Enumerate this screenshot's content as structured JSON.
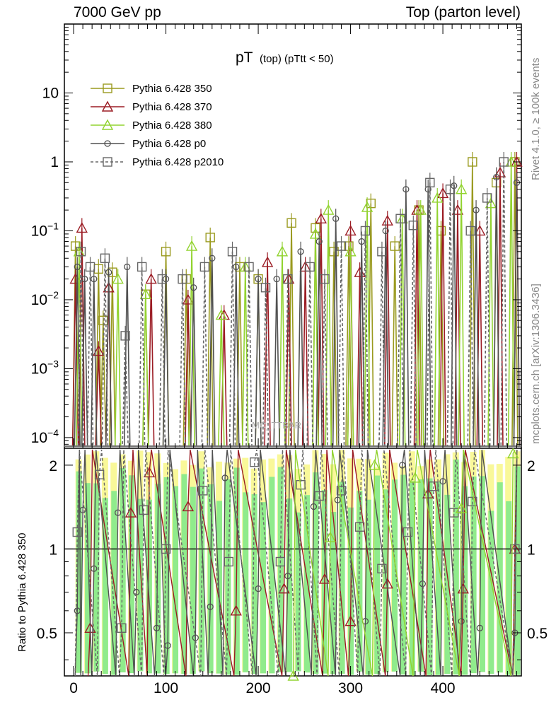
{
  "header": {
    "left": "7000 GeV pp",
    "right": "Top (parton level)"
  },
  "side_labels": {
    "rivet": "Rivet 4.1.0, ≥ 100k events",
    "mcplots": "mcplots.cern.ch [arXiv:1306.3436]"
  },
  "chart_data": {
    "type": "line",
    "title_main": "pT",
    "title_sub": "(top)  (pTtt < 50)",
    "watermark": "MC_TTBAR",
    "xlabel": "",
    "ylabel_ratio": "Ratio to Pythia 6.428 350",
    "xlim": [
      -10,
      485
    ],
    "ylim_main": [
      7e-05,
      100
    ],
    "ylim_ratio": [
      0.35,
      2.3
    ],
    "x_ticks": [
      "0",
      "100",
      "200",
      "300",
      "400"
    ],
    "y_ticks_main": [
      {
        "v": 10,
        "base": "10",
        "exp": ""
      },
      {
        "v": 1,
        "base": "1",
        "exp": ""
      },
      {
        "v": 0.1,
        "base": "10",
        "exp": "−1"
      },
      {
        "v": 0.01,
        "base": "10",
        "exp": "−2"
      },
      {
        "v": 0.001,
        "base": "10",
        "exp": "−3"
      },
      {
        "v": 0.0001,
        "base": "10",
        "exp": "−4"
      }
    ],
    "y_ticks_ratio": [
      "2",
      "1",
      "0.5"
    ],
    "y_ticks_ratio_vals": [
      2,
      1,
      0.5
    ],
    "legend": [
      {
        "name": "Pythia 6.428 350",
        "color": "#9a9a1f",
        "marker": "square-open",
        "dashed": false
      },
      {
        "name": "Pythia 6.428 370",
        "color": "#9b1c24",
        "marker": "triangle-open",
        "dashed": false
      },
      {
        "name": "Pythia 6.428 380",
        "color": "#92d330",
        "marker": "triangle-open",
        "dashed": false
      },
      {
        "name": "Pythia 6.428 p0",
        "color": "#505050",
        "marker": "circle-open",
        "dashed": false
      },
      {
        "name": "Pythia 6.428 p2010",
        "color": "#666666",
        "marker": "square-open",
        "dashed": true
      }
    ],
    "series": [
      {
        "name": "Pythia 6.428 350",
        "x": [
          2,
          27,
          32,
          42,
          78,
          100,
          122,
          148,
          180,
          200,
          236,
          262,
          282,
          298,
          322,
          348,
          374,
          398,
          432,
          458,
          478
        ],
        "y": [
          0.06,
          0.028,
          0.005,
          0.025,
          0.012,
          0.05,
          0.02,
          0.08,
          0.03,
          0.02,
          0.13,
          0.11,
          0.05,
          0.06,
          0.25,
          0.06,
          0.2,
          0.1,
          1.0,
          0.5,
          1.0
        ]
      },
      {
        "name": "Pythia 6.428 370",
        "x": [
          2,
          9,
          27,
          38,
          84,
          124,
          163,
          210,
          233,
          251,
          268,
          300,
          310,
          340,
          372,
          400,
          416,
          440,
          462,
          480
        ],
        "y": [
          0.02,
          0.11,
          0.0018,
          0.015,
          0.02,
          0.01,
          0.006,
          0.035,
          0.02,
          0.03,
          0.15,
          0.1,
          0.025,
          0.14,
          0.2,
          0.35,
          0.2,
          0.1,
          0.7,
          1.0
        ]
      },
      {
        "name": "Pythia 6.428 380",
        "x": [
          6,
          48,
          78,
          128,
          160,
          186,
          226,
          262,
          276,
          300,
          318,
          356,
          376,
          394,
          420,
          452,
          474
        ],
        "y": [
          0.05,
          0.02,
          0.012,
          0.06,
          0.006,
          0.03,
          0.05,
          0.09,
          0.2,
          0.05,
          0.22,
          0.15,
          0.2,
          0.3,
          0.4,
          0.25,
          1.0
        ]
      },
      {
        "name": "Pythia 6.428 p0",
        "x": [
          4,
          12,
          22,
          38,
          58,
          100,
          130,
          150,
          176,
          200,
          220,
          246,
          266,
          284,
          312,
          338,
          360,
          384,
          412,
          436,
          458,
          480
        ],
        "y": [
          0.03,
          0.02,
          0.02,
          0.025,
          0.03,
          0.02,
          0.015,
          0.04,
          0.03,
          0.02,
          0.02,
          0.05,
          0.07,
          0.15,
          0.07,
          0.1,
          0.4,
          0.4,
          0.45,
          0.2,
          0.6,
          0.5
        ]
      },
      {
        "name": "Pythia 6.428 p2010",
        "x": [
          8,
          18,
          34,
          56,
          74,
          96,
          118,
          142,
          172,
          190,
          208,
          232,
          256,
          272,
          290,
          316,
          334,
          354,
          368,
          386,
          408,
          430,
          448,
          466
        ],
        "y": [
          0.05,
          0.03,
          0.04,
          0.003,
          0.03,
          0.02,
          0.02,
          0.03,
          0.05,
          0.03,
          0.015,
          0.02,
          0.03,
          0.02,
          0.06,
          0.1,
          0.05,
          0.15,
          0.12,
          0.5,
          0.4,
          0.1,
          0.3,
          1.0
        ]
      }
    ],
    "ratio_series": [
      {
        "name": "Pythia 6.428 370",
        "x": [
          18,
          62,
          82,
          124,
          176,
          228,
          272,
          300,
          340,
          384,
          422,
          478
        ],
        "y": [
          0.52,
          1.35,
          1.88,
          1.42,
          0.6,
          0.72,
          0.78,
          0.55,
          0.75,
          1.58,
          0.72,
          1.0
        ]
      },
      {
        "name": "Pythia 6.428 p0",
        "x": [
          4,
          10,
          22,
          48,
          68,
          90,
          102,
          132,
          148,
          164,
          200,
          232,
          260,
          286,
          316,
          356,
          378,
          400,
          420,
          440,
          478
        ],
        "y": [
          0.6,
          1.38,
          0.85,
          1.35,
          0.7,
          0.52,
          0.45,
          0.48,
          0.62,
          1.8,
          0.72,
          0.8,
          1.42,
          1.5,
          0.55,
          2.0,
          0.75,
          1.75,
          0.55,
          0.52,
          0.5
        ]
      },
      {
        "name": "Pythia 6.428 p2010",
        "x": [
          4,
          28,
          52,
          76,
          100,
          140,
          168,
          196,
          224,
          246,
          266,
          290,
          310,
          334,
          362,
          390,
          412,
          432,
          478
        ],
        "y": [
          1.15,
          1.85,
          0.52,
          1.38,
          1.0,
          1.62,
          0.9,
          2.05,
          0.9,
          1.7,
          1.55,
          1.62,
          1.2,
          0.85,
          1.15,
          1.68,
          1.35,
          1.48,
          1.0
        ]
      },
      {
        "name": "Pythia 6.428 380",
        "x": [
          238,
          278,
          326,
          370,
          420,
          476
        ],
        "y": [
          0.35,
          1.1,
          2.0,
          1.8,
          1.4,
          2.2
        ]
      }
    ]
  }
}
